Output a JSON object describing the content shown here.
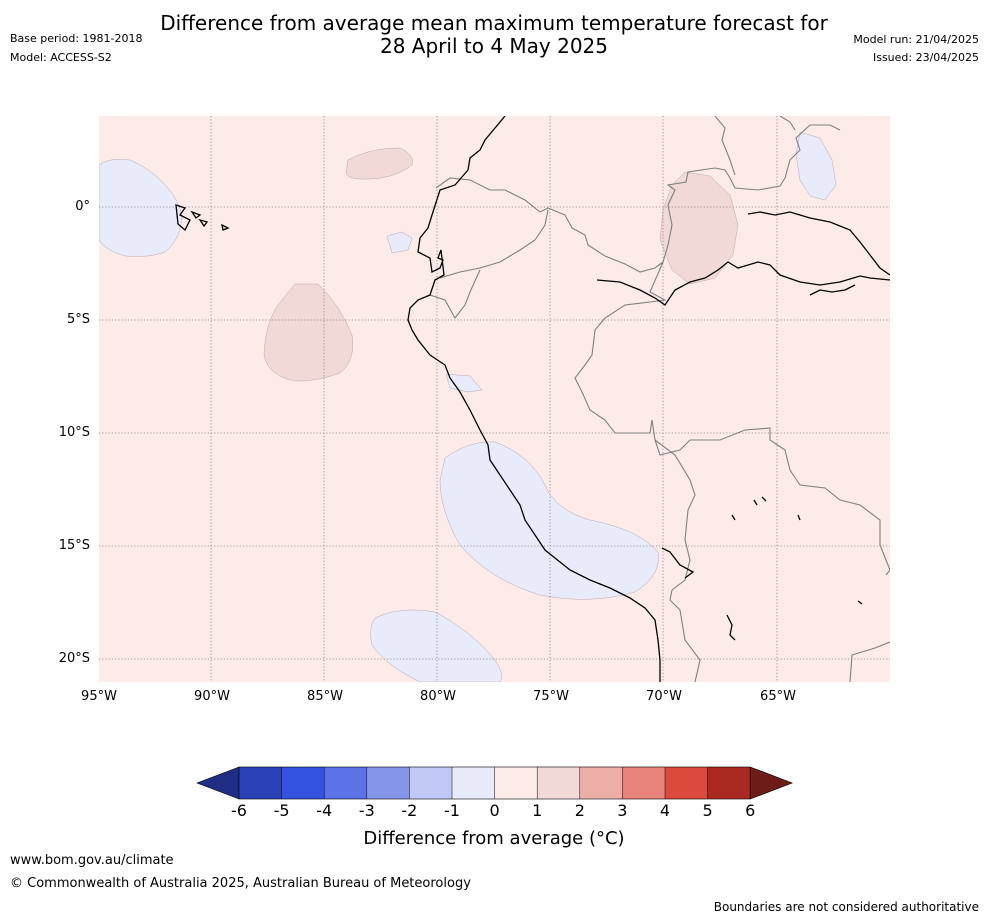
{
  "header": {
    "base_period": "Base period: 1981-2018",
    "model": "Model: ACCESS-S2",
    "title_line1": "Difference from average mean maximum temperature forecast for",
    "title_line2": "28 April to 4 May 2025",
    "model_run": "Model run: 21/04/2025",
    "issued": "Issued: 23/04/2025"
  },
  "map": {
    "lat_labels": [
      "0°",
      "5°S",
      "10°S",
      "15°S",
      "20°S"
    ],
    "lon_labels": [
      "95°W",
      "90°W",
      "85°W",
      "80°W",
      "75°W",
      "70°W",
      "65°W"
    ],
    "background_category": "0 to 1",
    "colors": {
      "base": "#fcebe9",
      "warm_1_2": "#f2d8d6",
      "cool_m1_0": "#e8ebfa",
      "coast": "#000000",
      "border": "#808080",
      "grid": "#8a7f80"
    }
  },
  "colorbar": {
    "labels": [
      "-6",
      "-5",
      "-4",
      "-3",
      "-2",
      "-1",
      "0",
      "1",
      "2",
      "3",
      "4",
      "5",
      "6"
    ],
    "colors": [
      "#1f2d85",
      "#2a41b8",
      "#3452e0",
      "#5b73e6",
      "#8595ea",
      "#c0c8f5",
      "#e8ebfa",
      "#fcebe9",
      "#f2d8d6",
      "#eeaea8",
      "#e8847c",
      "#dc4a3e",
      "#aa2a22",
      "#6e1c18"
    ],
    "title": "Difference from average (°C)"
  },
  "footer": {
    "url": "www.bom.gov.au/climate",
    "copyright": "© Commonwealth of Australia 2025, Australian Bureau of Meteorology",
    "disclaimer": "Boundaries are not considered authoritative"
  }
}
